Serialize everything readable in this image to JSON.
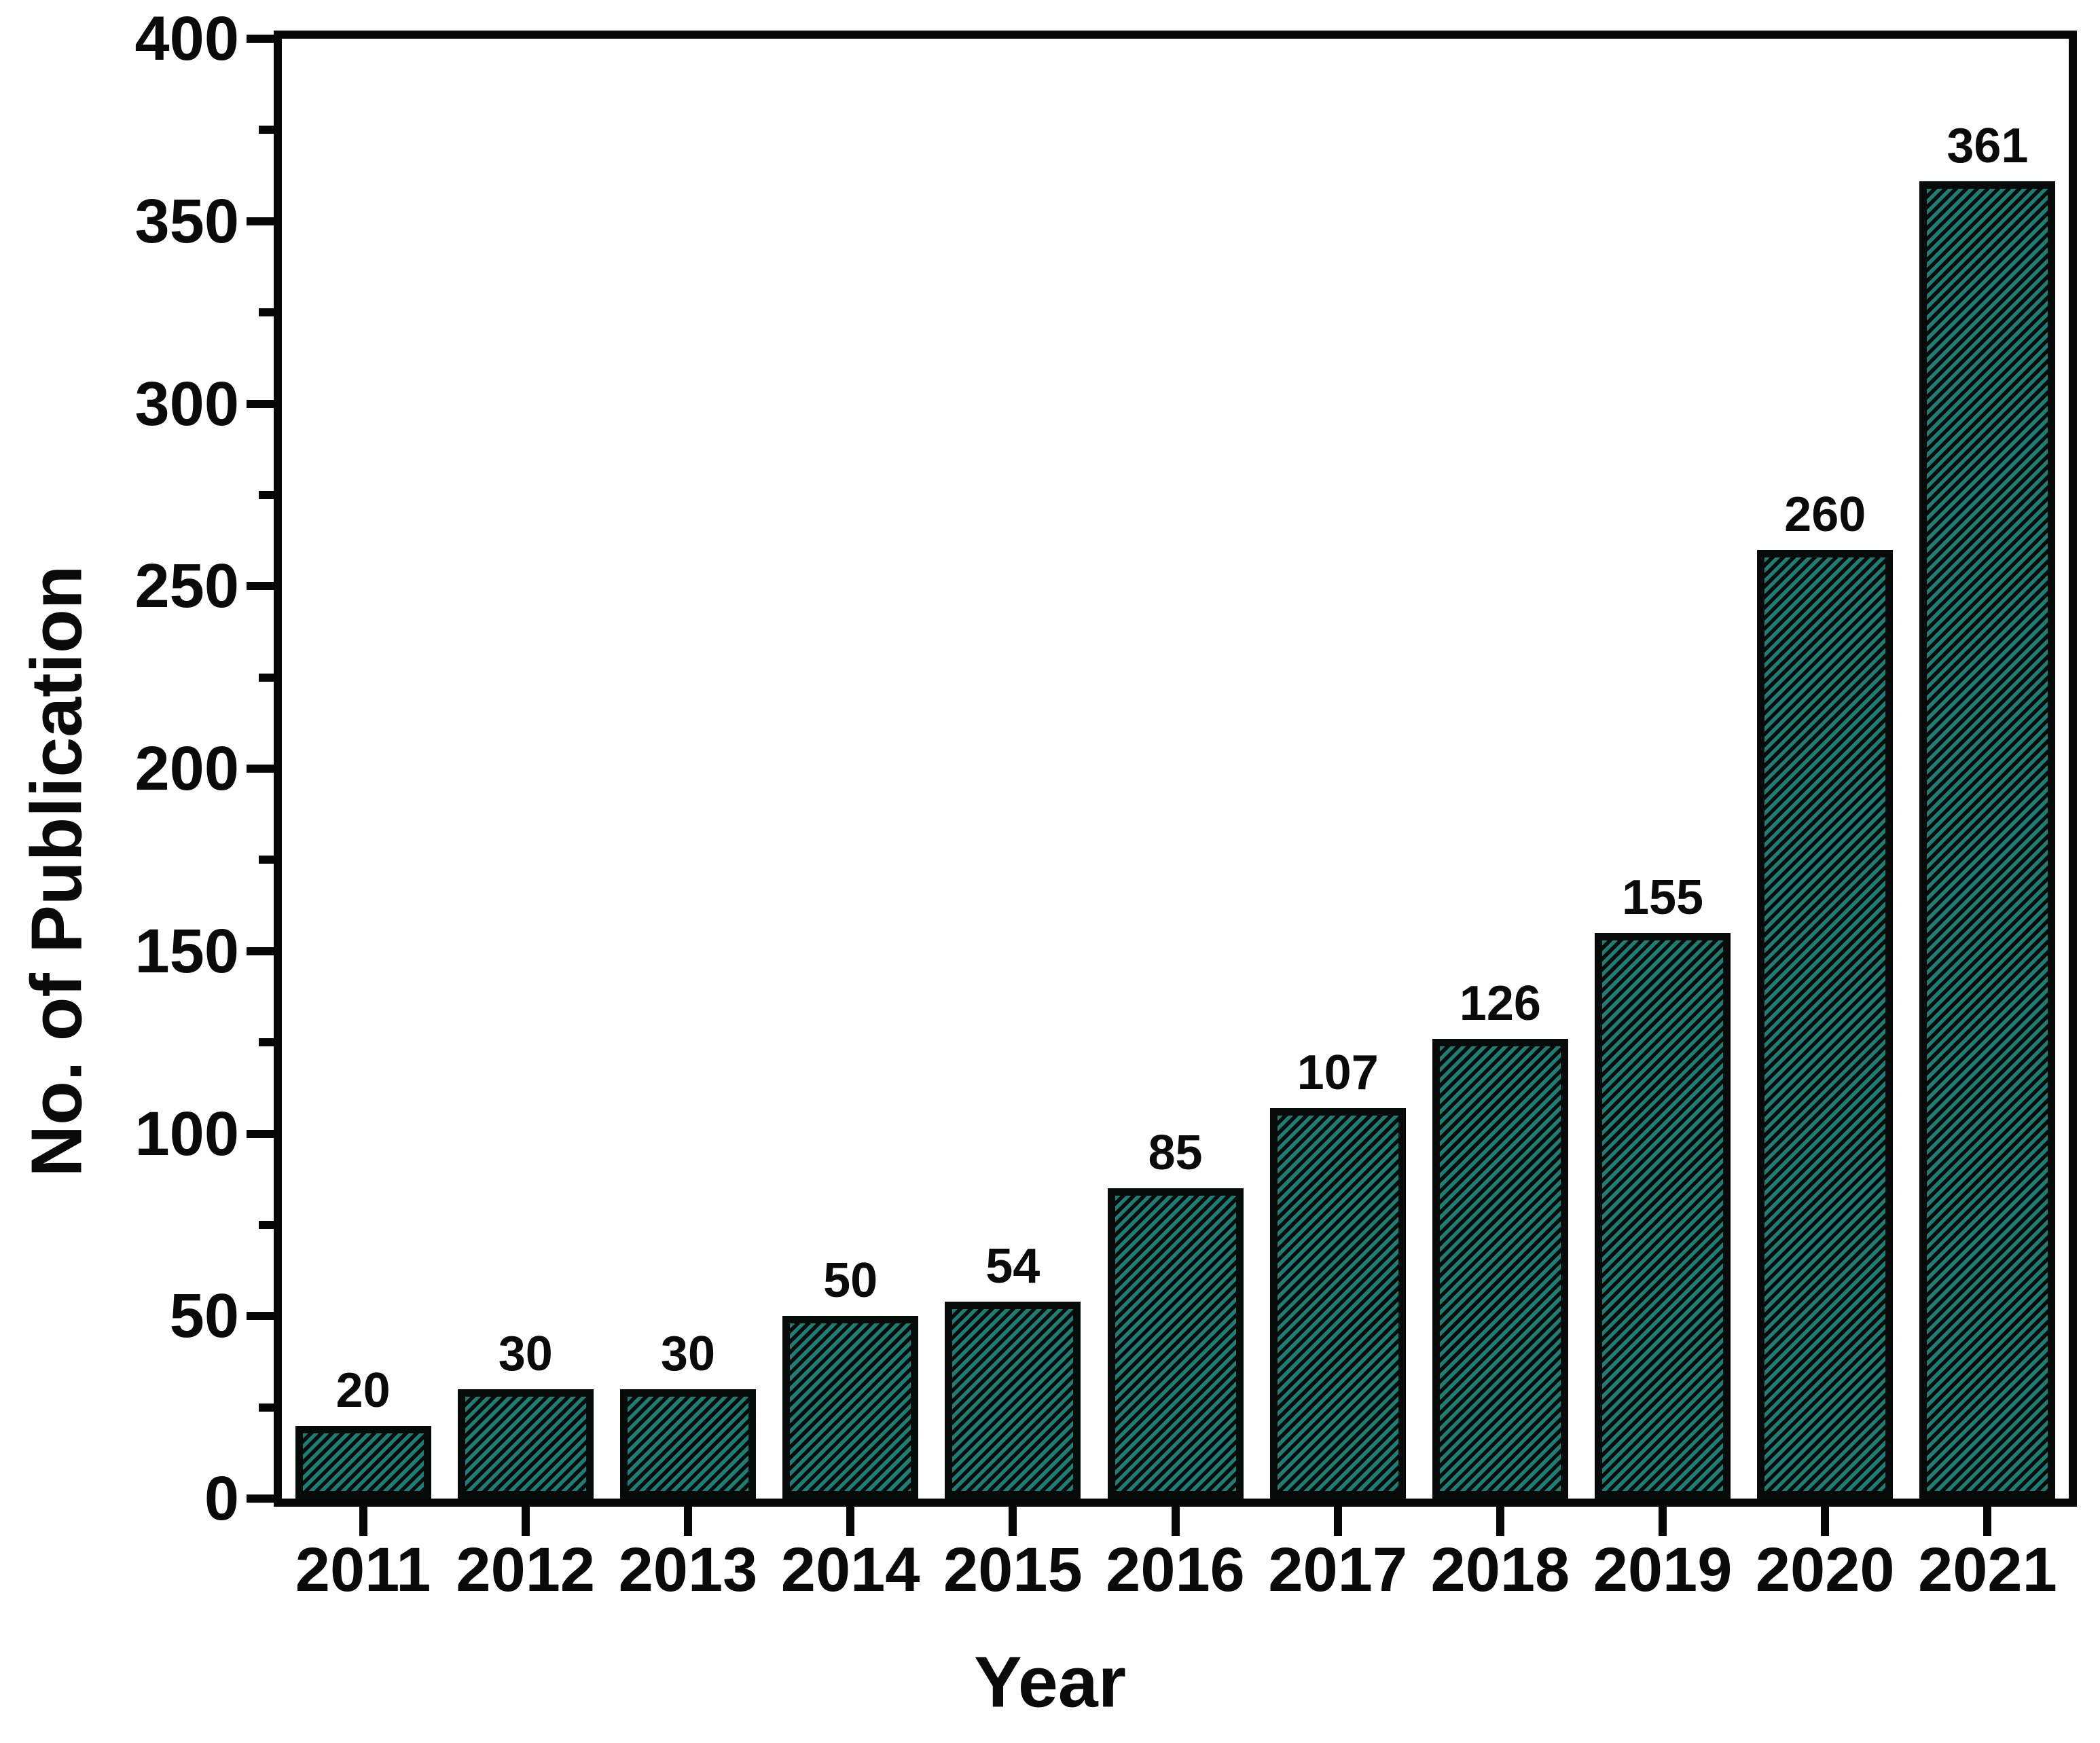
{
  "figure": {
    "background": "#ffffff",
    "frame_color": "#060606",
    "text_color": "#0a0a0a"
  },
  "chart_data": {
    "type": "bar",
    "title": "",
    "xlabel": "Year",
    "ylabel": "No. of Publication",
    "categories": [
      "2011",
      "2012",
      "2013",
      "2014",
      "2015",
      "2016",
      "2017",
      "2018",
      "2019",
      "2020",
      "2021"
    ],
    "values": [
      20,
      30,
      30,
      50,
      54,
      85,
      107,
      126,
      155,
      260,
      361
    ],
    "bar_value_labels": [
      "20",
      "30",
      "30",
      "50",
      "54",
      "85",
      "107",
      "126",
      "155",
      "260",
      "361"
    ],
    "ylim": [
      0,
      400
    ],
    "y_major_step": 50,
    "y_minor_step": 25,
    "y_tick_labels": [
      "0",
      "50",
      "100",
      "150",
      "200",
      "250",
      "300",
      "350",
      "400"
    ],
    "grid": "off",
    "legend": "none",
    "bar_style": {
      "hatch": "diagonal-forward-slash",
      "hatch_color": "#1e7e76",
      "hatch_background": "#070b0a",
      "border_color": "#060a09"
    }
  }
}
